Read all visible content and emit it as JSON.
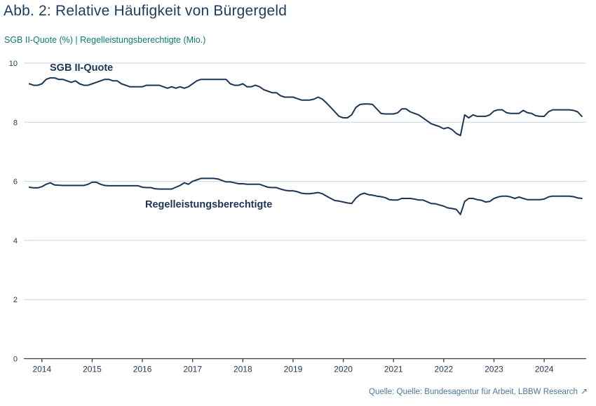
{
  "header": {
    "title": "Abb. 2: Relative Häufigkeit von Bürgergeld",
    "subtitle": "SGB II-Quote (%) | Regelleistungsberechtigte (Mio.)"
  },
  "footer": {
    "source": "Quelle: Quelle: Bundesagentur für Arbeit, LBBW Research",
    "external_link_icon": "↗"
  },
  "colors": {
    "title": "#1d3c5c",
    "subtitle": "#0b7c72",
    "line": "#1c3557",
    "grid": "#ccd2da",
    "axis": "#3c3c3c",
    "tick_label": "#23395d",
    "source": "#4a77a3"
  },
  "chart_data": {
    "type": "line",
    "title": "Abb. 2: Relative Häufigkeit von Bürgergeld",
    "subtitle": "SGB II-Quote (%) | Regelleistungsberechtigte (Mio.)",
    "x_start": "2013-10",
    "x_end": "2024-10",
    "frequency": "monthly",
    "x_tick_labels": [
      "2014",
      "2015",
      "2016",
      "2017",
      "2018",
      "2019",
      "2020",
      "2021",
      "2022",
      "2023",
      "2024"
    ],
    "y_ticks": [
      0,
      2,
      4,
      6,
      8,
      10
    ],
    "ylim": [
      0,
      10
    ],
    "grid": "horizontal-only",
    "legend_position": "inline-labels",
    "series": [
      {
        "id": "sgb-ii-quote",
        "name": "SGB II-Quote",
        "unit": "%",
        "values": [
          9.3,
          9.25,
          9.25,
          9.3,
          9.45,
          9.5,
          9.5,
          9.45,
          9.45,
          9.4,
          9.35,
          9.4,
          9.3,
          9.25,
          9.25,
          9.3,
          9.35,
          9.4,
          9.45,
          9.45,
          9.4,
          9.4,
          9.3,
          9.25,
          9.2,
          9.2,
          9.2,
          9.2,
          9.25,
          9.25,
          9.25,
          9.25,
          9.2,
          9.15,
          9.2,
          9.15,
          9.2,
          9.15,
          9.2,
          9.3,
          9.4,
          9.45,
          9.45,
          9.45,
          9.45,
          9.45,
          9.45,
          9.45,
          9.3,
          9.25,
          9.25,
          9.3,
          9.2,
          9.2,
          9.25,
          9.2,
          9.1,
          9.05,
          9.0,
          9.0,
          8.9,
          8.85,
          8.85,
          8.85,
          8.8,
          8.75,
          8.75,
          8.75,
          8.78,
          8.85,
          8.78,
          8.65,
          8.5,
          8.35,
          8.2,
          8.15,
          8.15,
          8.25,
          8.5,
          8.6,
          8.62,
          8.62,
          8.6,
          8.45,
          8.3,
          8.28,
          8.28,
          8.28,
          8.32,
          8.45,
          8.45,
          8.35,
          8.3,
          8.25,
          8.15,
          8.05,
          7.95,
          7.9,
          7.85,
          7.78,
          7.82,
          7.75,
          7.62,
          7.55,
          8.25,
          8.15,
          8.25,
          8.2,
          8.2,
          8.2,
          8.25,
          8.38,
          8.42,
          8.42,
          8.32,
          8.3,
          8.3,
          8.3,
          8.4,
          8.32,
          8.3,
          8.22,
          8.2,
          8.2,
          8.35,
          8.42,
          8.42,
          8.42,
          8.42,
          8.42,
          8.4,
          8.35,
          8.2
        ]
      },
      {
        "id": "regelleistungsberechtigte",
        "name": "Regelleistungsberechtigte",
        "unit": "Mio.",
        "values": [
          5.8,
          5.78,
          5.78,
          5.82,
          5.9,
          5.95,
          5.88,
          5.87,
          5.86,
          5.86,
          5.86,
          5.86,
          5.86,
          5.86,
          5.9,
          5.97,
          5.97,
          5.9,
          5.86,
          5.85,
          5.85,
          5.85,
          5.85,
          5.85,
          5.85,
          5.85,
          5.85,
          5.8,
          5.79,
          5.79,
          5.75,
          5.74,
          5.74,
          5.74,
          5.74,
          5.8,
          5.86,
          5.95,
          5.9,
          6.0,
          6.05,
          6.1,
          6.1,
          6.1,
          6.1,
          6.08,
          6.03,
          5.98,
          5.98,
          5.95,
          5.92,
          5.92,
          5.9,
          5.9,
          5.9,
          5.9,
          5.85,
          5.8,
          5.79,
          5.79,
          5.74,
          5.7,
          5.68,
          5.68,
          5.65,
          5.6,
          5.58,
          5.58,
          5.6,
          5.62,
          5.58,
          5.5,
          5.42,
          5.35,
          5.33,
          5.3,
          5.27,
          5.25,
          5.43,
          5.55,
          5.6,
          5.55,
          5.53,
          5.5,
          5.48,
          5.45,
          5.38,
          5.37,
          5.37,
          5.42,
          5.42,
          5.42,
          5.4,
          5.37,
          5.37,
          5.31,
          5.25,
          5.24,
          5.2,
          5.16,
          5.1,
          5.08,
          5.05,
          4.88,
          5.32,
          5.42,
          5.42,
          5.38,
          5.36,
          5.3,
          5.32,
          5.42,
          5.47,
          5.5,
          5.5,
          5.47,
          5.42,
          5.47,
          5.42,
          5.38,
          5.38,
          5.38,
          5.38,
          5.4,
          5.47,
          5.5,
          5.5,
          5.5,
          5.5,
          5.5,
          5.48,
          5.44,
          5.42
        ]
      }
    ]
  }
}
